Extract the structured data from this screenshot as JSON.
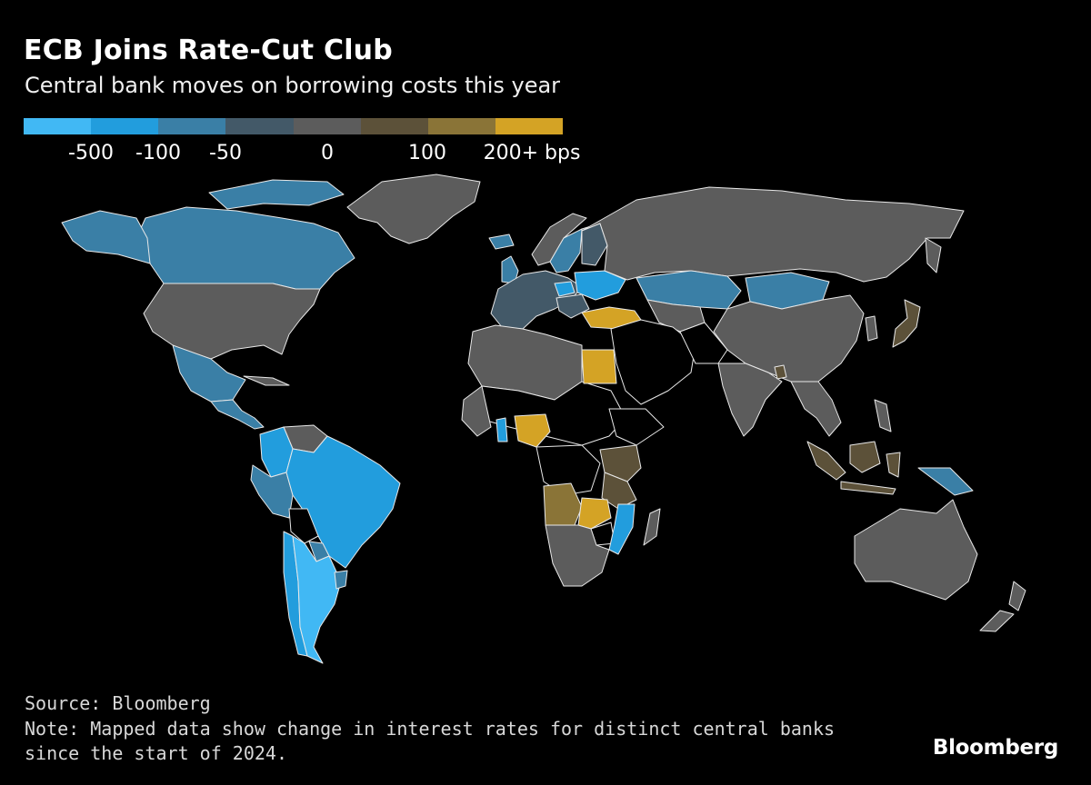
{
  "title": "ECB Joins Rate-Cut Club",
  "subtitle": "Central bank moves on borrowing costs this year",
  "legend": {
    "colors": [
      "#41b8f4",
      "#229ddd",
      "#3a7fa6",
      "#435968",
      "#5c5c5c",
      "#5c5139",
      "#8a7437",
      "#d4a325"
    ],
    "labels": [
      "-500",
      "-100",
      "-50",
      "0",
      "100",
      "200+ bps"
    ]
  },
  "map": {
    "unit": "bps change since start of 2024",
    "regions": [
      {
        "name": "Greenland",
        "bucket": "gray"
      },
      {
        "name": "Canada",
        "bucket": "mid-blue"
      },
      {
        "name": "United States",
        "bucket": "gray"
      },
      {
        "name": "Mexico",
        "bucket": "mid-blue"
      },
      {
        "name": "Central America",
        "bucket": "mid-blue"
      },
      {
        "name": "Colombia",
        "bucket": "blue"
      },
      {
        "name": "Venezuela",
        "bucket": "gray"
      },
      {
        "name": "Brazil",
        "bucket": "blue"
      },
      {
        "name": "Peru",
        "bucket": "mid-blue"
      },
      {
        "name": "Bolivia",
        "bucket": "black"
      },
      {
        "name": "Paraguay",
        "bucket": "mid-blue"
      },
      {
        "name": "Chile",
        "bucket": "blue"
      },
      {
        "name": "Argentina",
        "bucket": "bright-blue"
      },
      {
        "name": "Uruguay",
        "bucket": "mid-blue"
      },
      {
        "name": "Euro Area",
        "bucket": "slate"
      },
      {
        "name": "Norway",
        "bucket": "gray"
      },
      {
        "name": "Sweden",
        "bucket": "mid-blue"
      },
      {
        "name": "United Kingdom",
        "bucket": "mid-blue"
      },
      {
        "name": "Iceland",
        "bucket": "mid-blue"
      },
      {
        "name": "Hungary",
        "bucket": "blue"
      },
      {
        "name": "Ukraine",
        "bucket": "blue"
      },
      {
        "name": "Russia",
        "bucket": "gray"
      },
      {
        "name": "Turkey",
        "bucket": "gold"
      },
      {
        "name": "Egypt",
        "bucket": "gold"
      },
      {
        "name": "Nigeria",
        "bucket": "gold"
      },
      {
        "name": "Ghana",
        "bucket": "blue"
      },
      {
        "name": "Kenya",
        "bucket": "brown"
      },
      {
        "name": "Tanzania",
        "bucket": "brown"
      },
      {
        "name": "Angola",
        "bucket": "olive"
      },
      {
        "name": "Zambia",
        "bucket": "gold"
      },
      {
        "name": "Mozambique",
        "bucket": "blue"
      },
      {
        "name": "Madagascar",
        "bucket": "gray"
      },
      {
        "name": "South Africa",
        "bucket": "gray"
      },
      {
        "name": "Kazakhstan",
        "bucket": "mid-blue"
      },
      {
        "name": "Mongolia",
        "bucket": "mid-blue"
      },
      {
        "name": "China",
        "bucket": "gray"
      },
      {
        "name": "India",
        "bucket": "gray"
      },
      {
        "name": "Japan",
        "bucket": "brown"
      },
      {
        "name": "Indonesia",
        "bucket": "brown"
      },
      {
        "name": "Papua New Guinea",
        "bucket": "mid-blue"
      },
      {
        "name": "Australia",
        "bucket": "gray"
      },
      {
        "name": "New Zealand",
        "bucket": "gray"
      }
    ]
  },
  "footer": {
    "source": "Source: Bloomberg",
    "note_line1": "Note: Mapped data show change in interest rates for distinct central banks",
    "note_line2": "since the start of 2024."
  },
  "brand": "Bloomberg"
}
